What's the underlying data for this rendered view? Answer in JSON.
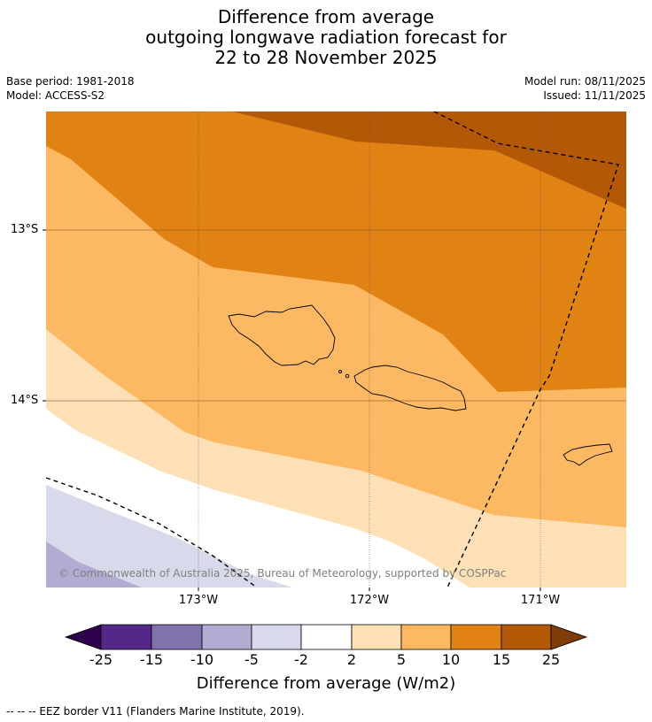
{
  "title": {
    "line1": "Difference from average",
    "line2": "outgoing longwave radiation forecast for",
    "line3": "22 to 28 November 2025"
  },
  "meta": {
    "base_period": "Base period: 1981-2018",
    "model": "Model: ACCESS-S2",
    "model_run": "Model run: 08/11/2025",
    "issued": "Issued: 11/11/2025"
  },
  "map": {
    "lat_labels": [
      "13°S",
      "14°S"
    ],
    "lon_labels": [
      "173°W",
      "172°W",
      "171°W"
    ],
    "copyright": "© Commonwealth of Australia 2025, Bureau of Meteorology, supported by COSPPac",
    "colors": {
      "band_15_25": "#b35806",
      "band_10_15": "#e08214",
      "band_5_10": "#fdb863",
      "band_2_5": "#fee0b6",
      "band_m2_2": "#ffffff",
      "band_m5_m2": "#d8daeb",
      "band_m10_m5": "#b2abd2"
    }
  },
  "colorbar": {
    "ticks": [
      "-25",
      "-15",
      "-10",
      "-5",
      "-2",
      "2",
      "5",
      "10",
      "15",
      "25"
    ],
    "colors": [
      "#2d004b",
      "#542788",
      "#8073ac",
      "#b2abd2",
      "#d8daeb",
      "#ffffff",
      "#fee0b6",
      "#fdb863",
      "#e08214",
      "#b35806",
      "#7f3b08"
    ],
    "label": "Difference from average (W/m2)"
  },
  "footnote": "--  --  -- EEZ border V11 (Flanders Marine Institute, 2019)."
}
